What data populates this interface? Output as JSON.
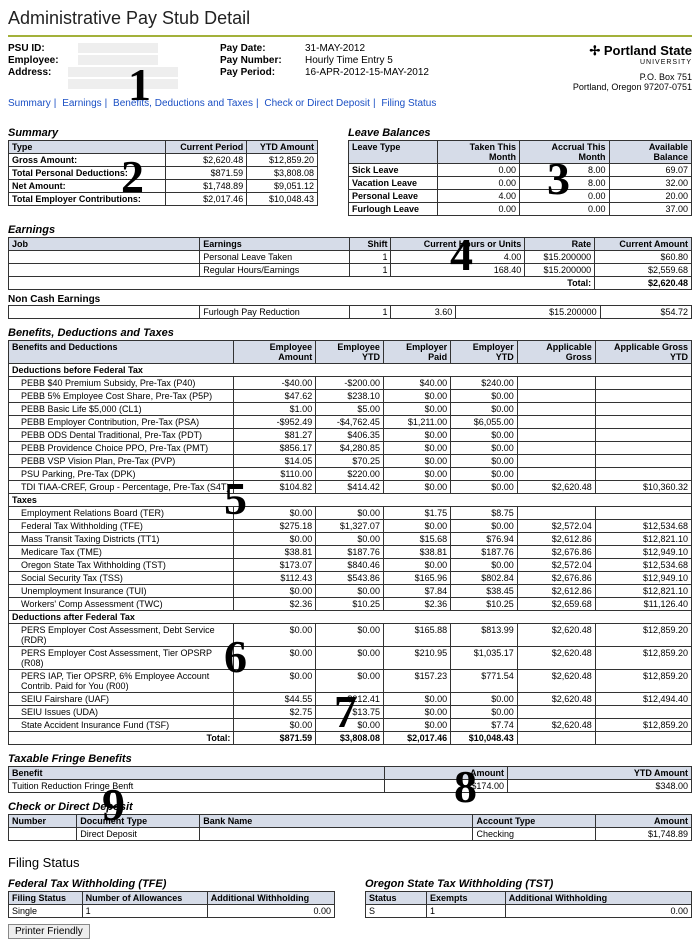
{
  "page_title": "Administrative Pay Stub Detail",
  "header": {
    "left_labels": {
      "psu_id": "PSU ID:",
      "employee": "Employee:",
      "address": "Address:"
    },
    "mid": {
      "pay_date_label": "Pay Date:",
      "pay_date": "31-MAY-2012",
      "pay_number_label": "Pay Number:",
      "pay_number": "Hourly Time Entry 5",
      "pay_period_label": "Pay Period:",
      "pay_period": "16-APR-2012-15-MAY-2012"
    },
    "right": {
      "logo_main": "Portland State",
      "logo_sub": "UNIVERSITY",
      "addr1": "P.O. Box 751",
      "addr2": "Portland, Oregon 97207-0751"
    }
  },
  "nav": [
    "Summary",
    "Earnings",
    "Benefits, Deductions and Taxes",
    "Check or Direct Deposit",
    "Filing Status"
  ],
  "summary": {
    "title": "Summary",
    "headers": [
      "Type",
      "Current Period",
      "YTD Amount"
    ],
    "rows": [
      [
        "Gross Amount:",
        "$2,620.48",
        "$12,859.20"
      ],
      [
        "Total Personal Deductions:",
        "$871.59",
        "$3,808.08"
      ],
      [
        "Net Amount:",
        "$1,748.89",
        "$9,051.12"
      ],
      [
        "Total Employer Contributions:",
        "$2,017.46",
        "$10,048.43"
      ]
    ]
  },
  "leave": {
    "title": "Leave Balances",
    "headers": [
      "Leave Type",
      "Taken This Month",
      "Accrual This Month",
      "Available Balance"
    ],
    "rows": [
      [
        "Sick Leave",
        "0.00",
        "8.00",
        "69.07"
      ],
      [
        "Vacation Leave",
        "0.00",
        "8.00",
        "32.00"
      ],
      [
        "Personal Leave",
        "4.00",
        "0.00",
        "20.00"
      ],
      [
        "Furlough Leave",
        "0.00",
        "0.00",
        "37.00"
      ]
    ]
  },
  "earnings": {
    "title": "Earnings",
    "headers": [
      "Job",
      "Earnings",
      "Shift",
      "Current Hours or Units",
      "Rate",
      "Current Amount"
    ],
    "rows": [
      [
        "",
        "Personal Leave Taken",
        "1",
        "4.00",
        "$15.200000",
        "$60.80"
      ],
      [
        "",
        "Regular Hours/Earnings",
        "1",
        "168.40",
        "$15.200000",
        "$2,559.68"
      ]
    ],
    "total_label": "Total:",
    "total_value": "$2,620.48",
    "noncash_title": "Non Cash Earnings",
    "noncash_rows": [
      [
        "",
        "Furlough Pay Reduction",
        "1",
        "3.60",
        "$15.200000",
        "$54.72"
      ]
    ]
  },
  "bdt": {
    "title": "Benefits, Deductions and Taxes",
    "headers": [
      "Benefits and Deductions",
      "Employee Amount",
      "Employee YTD",
      "Employer Paid",
      "Employer YTD",
      "Applicable Gross",
      "Applicable Gross YTD"
    ],
    "group1": "Deductions before Federal Tax",
    "rows1": [
      [
        "PEBB $40 Premium Subsidy, Pre-Tax (P40)",
        "-$40.00",
        "-$200.00",
        "$40.00",
        "$240.00",
        "",
        ""
      ],
      [
        "PEBB 5% Employee Cost Share, Pre-Tax (P5P)",
        "$47.62",
        "$238.10",
        "$0.00",
        "$0.00",
        "",
        ""
      ],
      [
        "PEBB Basic Life $5,000 (CL1)",
        "$1.00",
        "$5.00",
        "$0.00",
        "$0.00",
        "",
        ""
      ],
      [
        "PEBB Employer Contribution, Pre-Tax (PSA)",
        "-$952.49",
        "-$4,762.45",
        "$1,211.00",
        "$6,055.00",
        "",
        ""
      ],
      [
        "PEBB ODS Dental Traditional, Pre-Tax (PDT)",
        "$81.27",
        "$406.35",
        "$0.00",
        "$0.00",
        "",
        ""
      ],
      [
        "PEBB Providence Choice PPO, Pre-Tax (PMT)",
        "$856.17",
        "$4,280.85",
        "$0.00",
        "$0.00",
        "",
        ""
      ],
      [
        "PEBB VSP Vision Plan, Pre-Tax (PVP)",
        "$14.05",
        "$70.25",
        "$0.00",
        "$0.00",
        "",
        ""
      ],
      [
        "PSU Parking, Pre-Tax (DPK)",
        "$110.00",
        "$220.00",
        "$0.00",
        "$0.00",
        "",
        ""
      ],
      [
        "TDI TIAA-CREF, Group - Percentage, Pre-Tax (S4T)",
        "$104.82",
        "$414.42",
        "$0.00",
        "$0.00",
        "$2,620.48",
        "$10,360.32"
      ]
    ],
    "group2": "Taxes",
    "rows2": [
      [
        "Employment Relations Board (TER)",
        "$0.00",
        "$0.00",
        "$1.75",
        "$8.75",
        "",
        ""
      ],
      [
        "Federal Tax Withholding (TFE)",
        "$275.18",
        "$1,327.07",
        "$0.00",
        "$0.00",
        "$2,572.04",
        "$12,534.68"
      ],
      [
        "Mass Transit Taxing Districts (TT1)",
        "$0.00",
        "$0.00",
        "$15.68",
        "$76.94",
        "$2,612.86",
        "$12,821.10"
      ],
      [
        "Medicare Tax (TME)",
        "$38.81",
        "$187.76",
        "$38.81",
        "$187.76",
        "$2,676.86",
        "$12,949.10"
      ],
      [
        "Oregon State Tax Withholding (TST)",
        "$173.07",
        "$840.46",
        "$0.00",
        "$0.00",
        "$2,572.04",
        "$12,534.68"
      ],
      [
        "Social Security Tax (TSS)",
        "$112.43",
        "$543.86",
        "$165.96",
        "$802.84",
        "$2,676.86",
        "$12,949.10"
      ],
      [
        "Unemployment Insurance (TUI)",
        "$0.00",
        "$0.00",
        "$7.84",
        "$38.45",
        "$2,612.86",
        "$12,821.10"
      ],
      [
        "Workers' Comp Assessment (TWC)",
        "$2.36",
        "$10.25",
        "$2.36",
        "$10.25",
        "$2,659.68",
        "$11,126.40"
      ]
    ],
    "group3": "Deductions after Federal Tax",
    "rows3": [
      [
        "PERS Employer Cost Assessment, Debt Service (RDR)",
        "$0.00",
        "$0.00",
        "$165.88",
        "$813.99",
        "$2,620.48",
        "$12,859.20"
      ],
      [
        "PERS Employer Cost Assessment, Tier OPSRP (R08)",
        "$0.00",
        "$0.00",
        "$210.95",
        "$1,035.17",
        "$2,620.48",
        "$12,859.20"
      ],
      [
        "PERS IAP, Tier OPSRP, 6% Employee Account Contrib. Paid for You (R00)",
        "$0.00",
        "$0.00",
        "$157.23",
        "$771.54",
        "$2,620.48",
        "$12,859.20"
      ],
      [
        "SEIU Fairshare (UAF)",
        "$44.55",
        "$212.41",
        "$0.00",
        "$0.00",
        "$2,620.48",
        "$12,494.40"
      ],
      [
        "SEIU Issues (UDA)",
        "$2.75",
        "$13.75",
        "$0.00",
        "$0.00",
        "",
        ""
      ],
      [
        "State Accident Insurance Fund (TSF)",
        "$0.00",
        "$0.00",
        "$0.00",
        "$7.74",
        "$2,620.48",
        "$12,859.20"
      ]
    ],
    "total_label": "Total:",
    "totals": [
      "$871.59",
      "$3,808.08",
      "$2,017.46",
      "$10,048.43",
      "",
      ""
    ]
  },
  "fringe": {
    "title": "Taxable Fringe Benefits",
    "headers": [
      "Benefit",
      "Amount",
      "YTD Amount"
    ],
    "rows": [
      [
        "Tuition Reduction Fringe Benft",
        "$174.00",
        "$348.00"
      ]
    ]
  },
  "deposit": {
    "title": "Check or Direct Deposit",
    "headers": [
      "Number",
      "Document Type",
      "Bank Name",
      "Account Type",
      "Amount"
    ],
    "rows": [
      [
        "",
        "Direct Deposit",
        "",
        "Checking",
        "$1,748.89"
      ]
    ]
  },
  "filing": {
    "title": "Filing Status",
    "fed_title": "Federal Tax Withholding (TFE)",
    "fed_headers": [
      "Filing Status",
      "Number of Allowances",
      "Additional Withholding"
    ],
    "fed_row": [
      "Single",
      "1",
      "0.00"
    ],
    "ore_title": "Oregon State Tax Withholding (TST)",
    "ore_headers": [
      "Status",
      "Exempts",
      "Additional Withholding"
    ],
    "ore_row": [
      "S",
      "1",
      "0.00"
    ]
  },
  "button": "Printer Friendly",
  "overlays": {
    "n1": "1",
    "n2": "2",
    "n3": "3",
    "n4": "4",
    "n5": "5",
    "n6": "6",
    "n7": "7",
    "n8": "8",
    "n9": "9"
  }
}
